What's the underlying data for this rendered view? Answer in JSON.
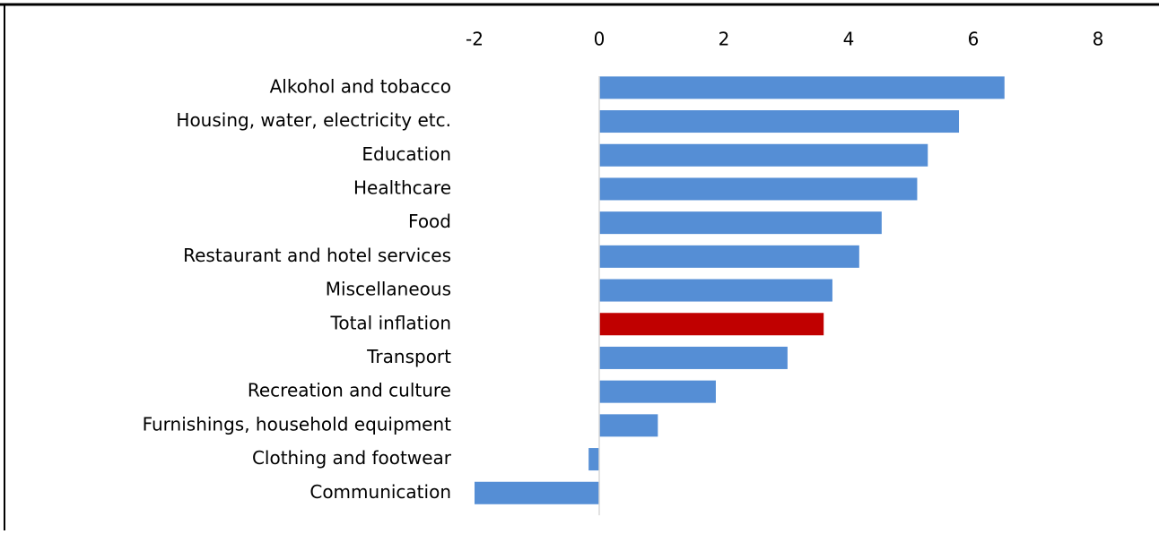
{
  "chart_data": {
    "type": "bar",
    "orientation": "horizontal",
    "categories": [
      "Alkohol and tobacco",
      "Housing, water, electricity etc.",
      "Education",
      "Healthcare",
      "Food",
      "Restaurant and hotel services",
      "Miscellaneous",
      "Total inflation",
      "Transport",
      "Recreation and culture",
      "Furnishings, household equipment",
      "Clothing and footwear",
      "Communication"
    ],
    "values": [
      6.5,
      5.77,
      5.27,
      5.1,
      4.53,
      4.17,
      3.74,
      3.6,
      3.02,
      1.87,
      0.94,
      -0.17,
      -2.0
    ],
    "colors": [
      "#558ed5",
      "#558ed5",
      "#558ed5",
      "#558ed5",
      "#558ed5",
      "#558ed5",
      "#558ed5",
      "#c00000",
      "#558ed5",
      "#558ed5",
      "#558ed5",
      "#558ed5",
      "#558ed5"
    ],
    "xlim": [
      -2,
      8
    ],
    "xticks": [
      -2,
      0,
      2,
      4,
      6,
      8
    ],
    "grid": false
  }
}
